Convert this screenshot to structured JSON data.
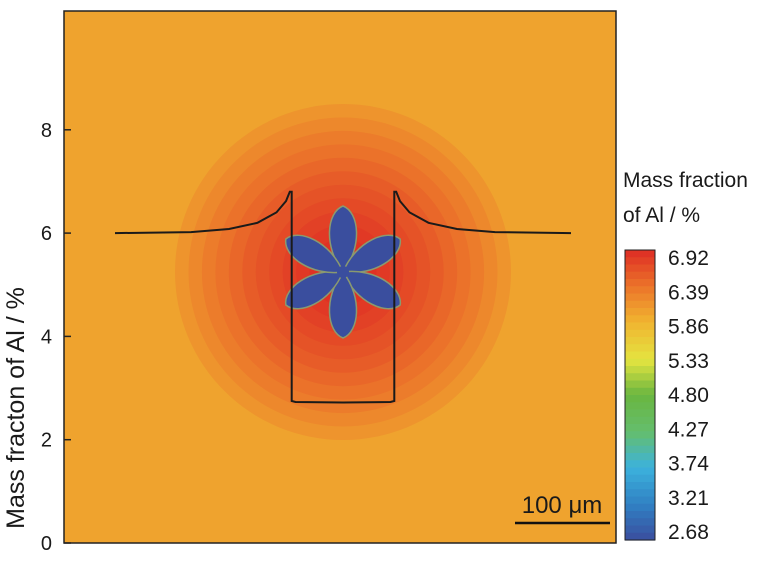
{
  "chart_data": {
    "type": "heatmap",
    "title": "",
    "ylabel": "Mass fracton of Al / %",
    "xlabel": "",
    "ylim": [
      0,
      10.3
    ],
    "y_ticks": [
      "0",
      "2",
      "4",
      "6",
      "8"
    ],
    "grid": false,
    "scale_bar": {
      "label": "100 μm",
      "length_um": 100
    },
    "colorbar": {
      "title_line1": "Mass fraction",
      "title_line2": "of Al / %",
      "placement": "right",
      "ticks": [
        "6.92",
        "6.39",
        "5.86",
        "5.33",
        "4.80",
        "4.27",
        "3.74",
        "3.21",
        "2.68"
      ],
      "min": 2.68,
      "max": 6.92
    },
    "field": {
      "background_value": 6.0,
      "dendrite_value": 2.68,
      "dendrite_petals": 6,
      "contour_levels": [
        {
          "value": 6.12
        },
        {
          "value": 6.22
        },
        {
          "value": 6.32
        },
        {
          "value": 6.4
        },
        {
          "value": 6.48
        },
        {
          "value": 6.56
        },
        {
          "value": 6.63
        },
        {
          "value": 6.7
        },
        {
          "value": 6.76
        },
        {
          "value": 6.82
        },
        {
          "value": 6.88
        },
        {
          "value": 6.92
        }
      ]
    },
    "profile": {
      "name": "",
      "color": "#1a1a1a",
      "x_um": [
        -240,
        -160,
        -120,
        -90,
        -70,
        -60,
        -56,
        -54,
        -54,
        -50,
        0,
        50,
        54,
        54,
        56,
        60,
        70,
        90,
        120,
        160,
        240
      ],
      "y": [
        6.0,
        6.02,
        6.08,
        6.2,
        6.4,
        6.62,
        6.8,
        6.8,
        2.75,
        2.73,
        2.72,
        2.73,
        2.75,
        6.8,
        6.8,
        6.62,
        6.4,
        6.2,
        6.08,
        6.02,
        6.0
      ]
    }
  }
}
